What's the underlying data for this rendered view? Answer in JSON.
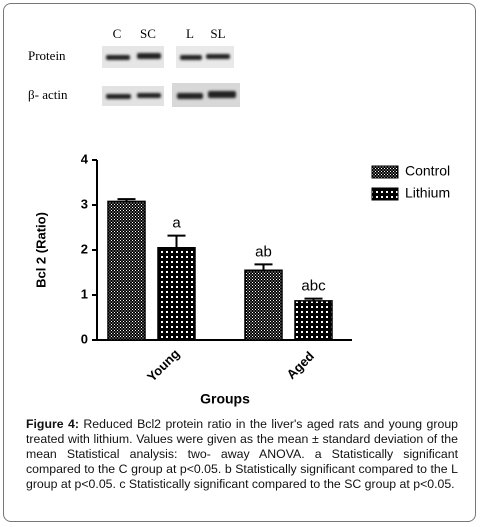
{
  "blot": {
    "lanes": [
      "C",
      "SC",
      "L",
      "SL"
    ],
    "rows": [
      "Protein",
      "β- actin"
    ]
  },
  "chart_data": {
    "type": "bar",
    "categories": [
      "Young",
      "Aged"
    ],
    "series": [
      {
        "name": "Control",
        "color": "#000000",
        "values": [
          3.08,
          1.55
        ],
        "errors": [
          0.05,
          0.13
        ],
        "letters": [
          null,
          "ab"
        ]
      },
      {
        "name": "Lithium",
        "color": "#000000",
        "values": [
          2.05,
          0.87
        ],
        "errors": [
          0.27,
          0.05
        ],
        "letters": [
          "a",
          "abc"
        ]
      }
    ],
    "ylabel": "Bcl 2 (Ratio)",
    "xlabel": "Groups",
    "ylim": [
      0,
      4
    ],
    "yticks": [
      0,
      1,
      2,
      3,
      4
    ],
    "legend": "upper right"
  },
  "caption": {
    "label": "Figure 4:",
    "text": "Reduced Bcl2 protein ratio in the liver's aged rats and young group treated with lithium. Values were given as the mean ± standard deviation of the mean Statistical analysis: two- away ANOVA. a Statistically significant compared to the C group at p<0.05. b Statistically significant compared to the L group at p<0.05. c Statistically significant compared to the SC group at p<0.05."
  }
}
